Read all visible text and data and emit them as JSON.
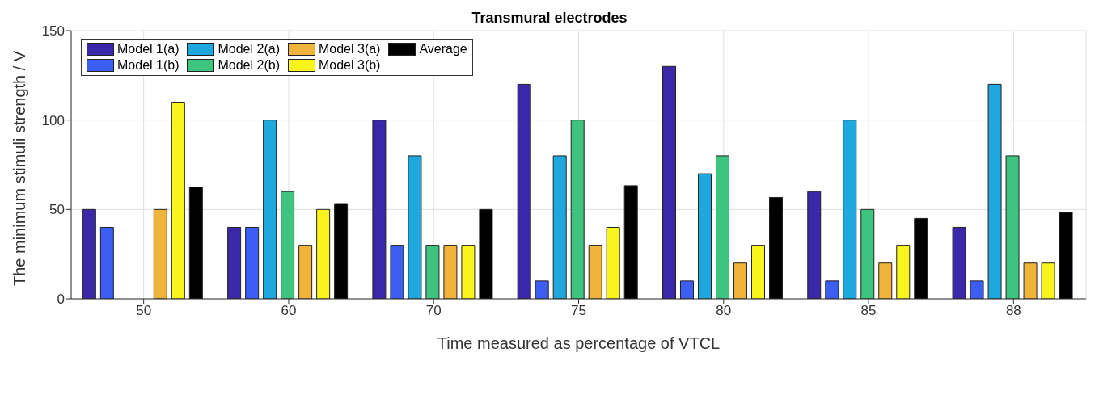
{
  "chart_data": {
    "type": "bar",
    "title": "Transmural electrodes",
    "xlabel": "Time measured as percentage of VTCL",
    "ylabel": "The minimum stimuli strength / V",
    "categories": [
      "50",
      "60",
      "70",
      "75",
      "80",
      "85",
      "88"
    ],
    "series": [
      {
        "name": "Model 1(a)",
        "color": "#3a28a8",
        "values": [
          50,
          40,
          100,
          120,
          130,
          60,
          40
        ]
      },
      {
        "name": "Model 1(b)",
        "color": "#3d5ef5",
        "values": [
          40,
          40,
          30,
          10,
          10,
          10,
          10
        ]
      },
      {
        "name": "Model 2(a)",
        "color": "#1fa8de",
        "values": [
          null,
          100,
          80,
          80,
          70,
          100,
          120
        ]
      },
      {
        "name": "Model 2(b)",
        "color": "#3ec47e",
        "values": [
          null,
          60,
          30,
          100,
          80,
          50,
          80
        ]
      },
      {
        "name": "Model 3(a)",
        "color": "#f0b43a",
        "values": [
          50,
          30,
          30,
          30,
          20,
          20,
          20
        ]
      },
      {
        "name": "Model 3(b)",
        "color": "#f8f41c",
        "values": [
          110,
          50,
          30,
          40,
          30,
          30,
          20
        ]
      },
      {
        "name": "Average",
        "color": "#000000",
        "values": [
          62.5,
          53.3,
          50,
          63.3,
          56.7,
          45,
          48.3
        ]
      }
    ],
    "ylim": [
      0,
      150
    ],
    "yticks": [
      0,
      50,
      100,
      150
    ],
    "grid": true,
    "legend": "top left"
  }
}
